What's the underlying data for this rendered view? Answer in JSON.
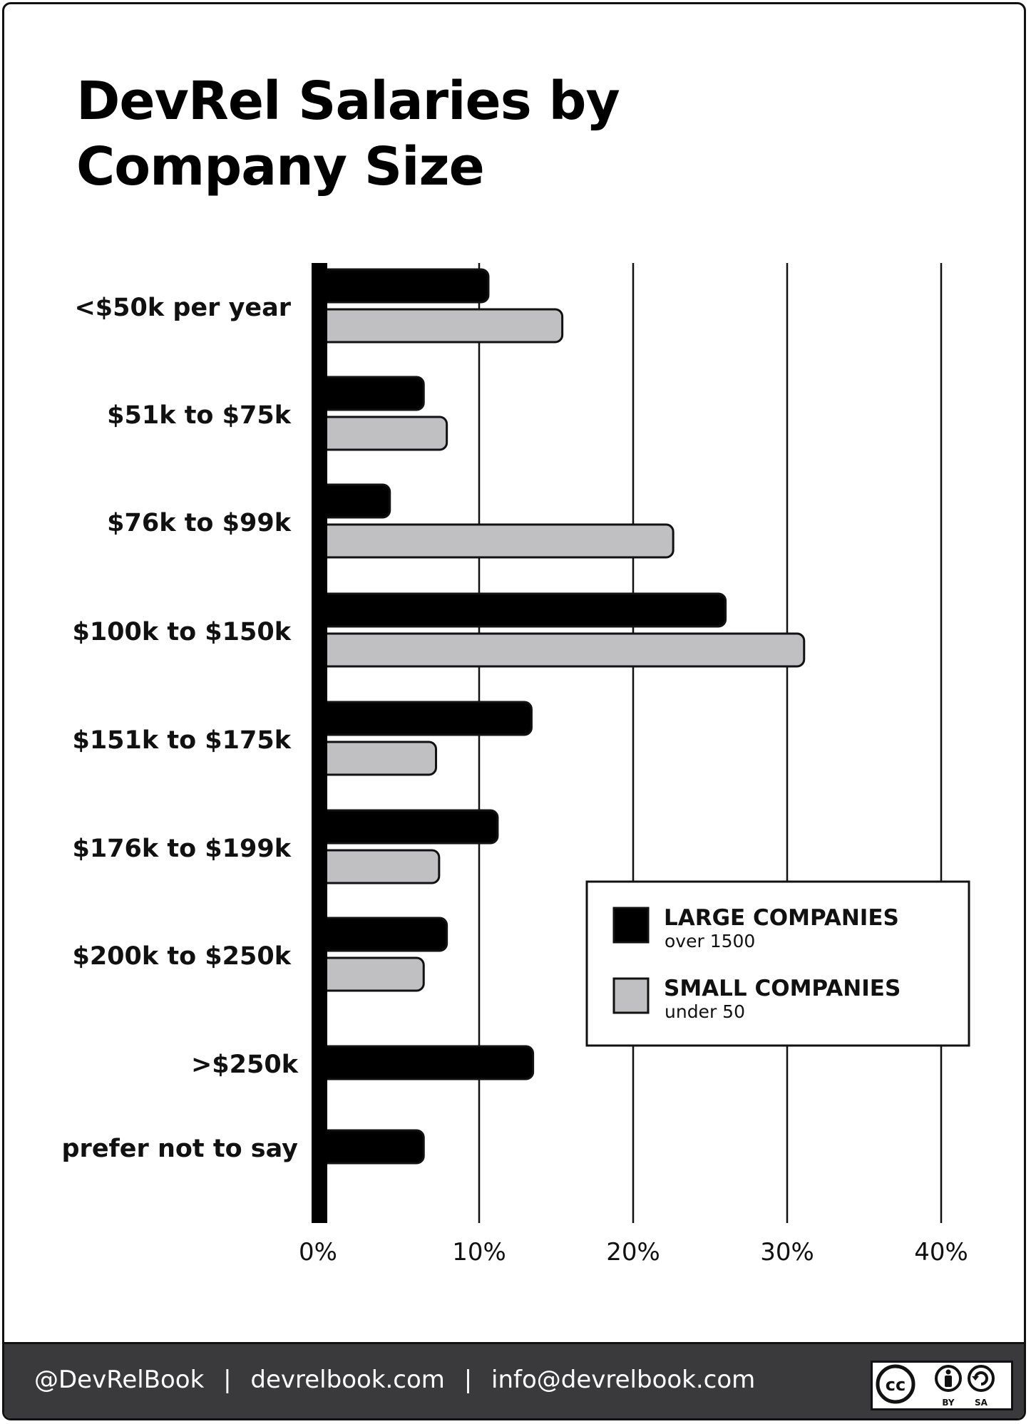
{
  "title": "DevRel Salaries by Company Size",
  "title_lines": [
    "DevRel Salaries by",
    "Company Size"
  ],
  "chart_data": {
    "type": "bar",
    "orientation": "horizontal",
    "categories": [
      "<$50k per year",
      "$51k to $75k",
      "$76k to $99k",
      "$100k to $150k",
      "$151k to $175k",
      "$176k to $199k",
      "$200k to $250k",
      ">$250k",
      "prefer not to say"
    ],
    "series": [
      {
        "name": "LARGE COMPANIES",
        "subtitle": "over 1500",
        "color": "#000000",
        "values": [
          10.6,
          6.4,
          4.2,
          26.0,
          13.4,
          11.2,
          7.9,
          13.5,
          6.4
        ]
      },
      {
        "name": "SMALL COMPANIES",
        "subtitle": "under 50",
        "color": "#c0c0c2",
        "values": [
          15.4,
          7.9,
          22.6,
          31.1,
          7.2,
          7.4,
          6.4,
          null,
          null
        ]
      }
    ],
    "xlim": [
      0,
      40
    ],
    "xticks": [
      "0%",
      "10%",
      "20%",
      "30%",
      "40%"
    ],
    "grid": true,
    "legend": "right"
  },
  "footer": {
    "handle": "@DevRelBook",
    "site": "devrelbook.com",
    "email": "info@devrelbook.com",
    "separator": "|",
    "license_by": "BY",
    "license_sa": "SA"
  }
}
